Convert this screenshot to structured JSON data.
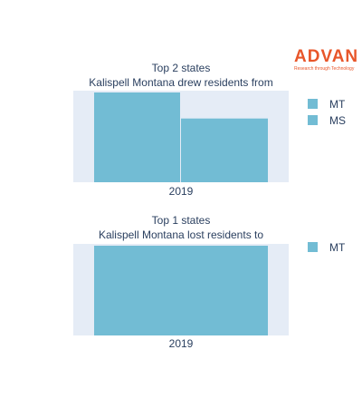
{
  "logo": {
    "name": "ADVAN",
    "tagline": "Research through Technology"
  },
  "colors": {
    "bar": "#72bcd4",
    "plot_bg": "#e5ecf6",
    "text": "#2a3f5f",
    "brand": "#e8562a"
  },
  "chart_data": [
    {
      "type": "bar",
      "title": "Top 2 states",
      "subtitle": "Kalispell Montana drew residents from",
      "categories": [
        "2019"
      ],
      "series": [
        {
          "name": "MT",
          "values": [
            1.0
          ]
        },
        {
          "name": "MS",
          "values": [
            0.71
          ]
        }
      ],
      "ylim": [
        0,
        1.02
      ],
      "grid": false,
      "legend": "right"
    },
    {
      "type": "bar",
      "title": "Top 1 states",
      "subtitle": "Kalispell Montana lost residents to",
      "categories": [
        "2019"
      ],
      "series": [
        {
          "name": "MT",
          "values": [
            1.0
          ]
        }
      ],
      "ylim": [
        0,
        1.02
      ],
      "grid": false,
      "legend": "right"
    }
  ]
}
